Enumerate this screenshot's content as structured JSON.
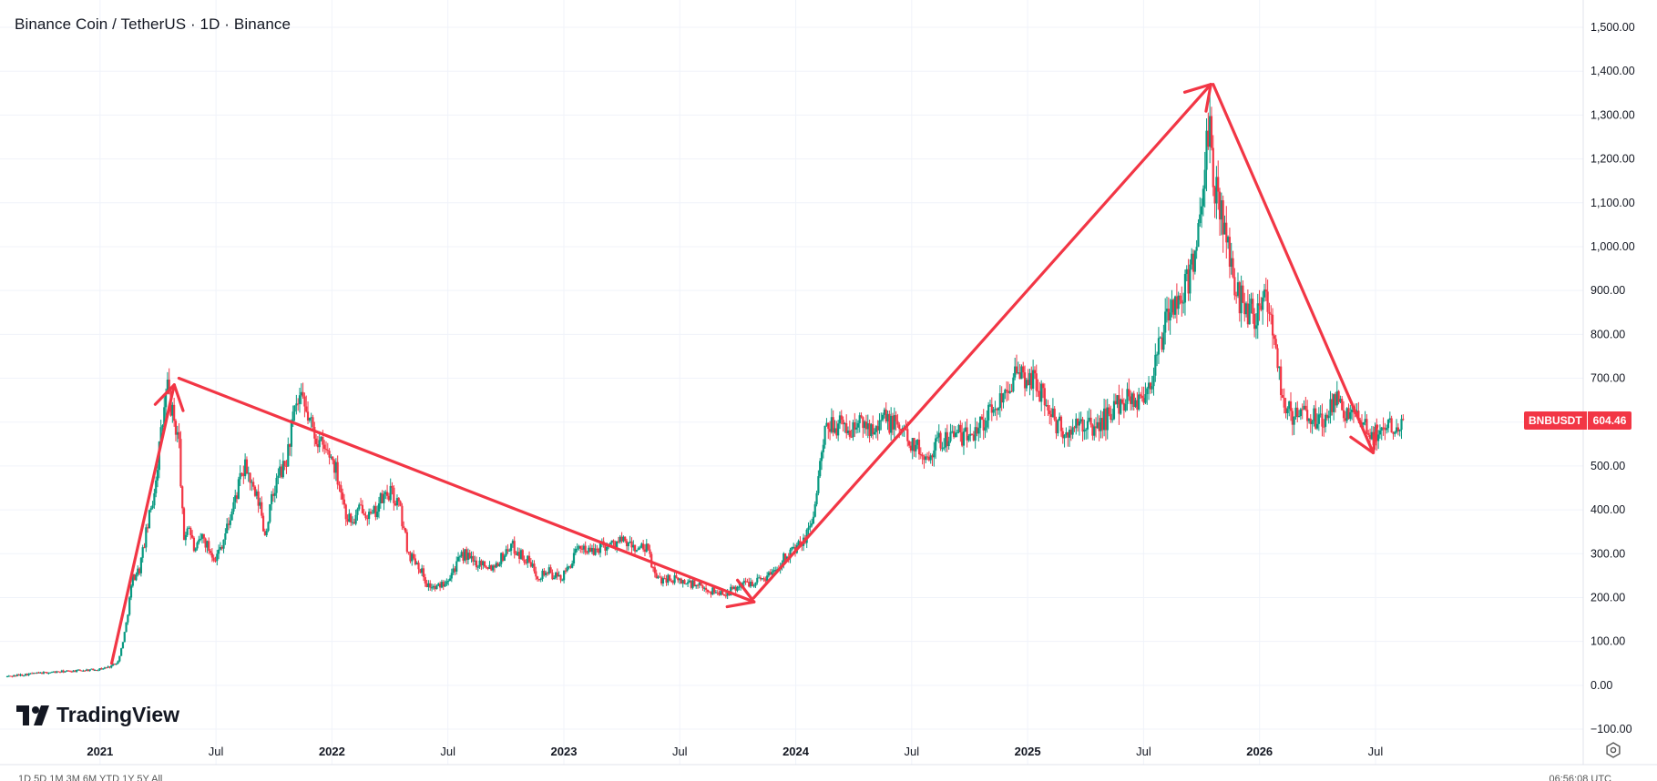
{
  "header": {
    "title": "Binance Coin / TetherUS · 1D · Binance"
  },
  "branding": {
    "logo_text": "TradingView",
    "logo_icon": "tradingview-logo-icon"
  },
  "price_badge": {
    "symbol": "BNBUSDT",
    "value": "604.46",
    "color": "#f23645"
  },
  "footer": {
    "ranges_text": "1D  5D  1M  3M  6M  YTD  1Y  5Y  All",
    "time_text": "06:56:08 UTC",
    "calendar_icon": "calendar-icon",
    "settings_icon": "gear-icon"
  },
  "colors": {
    "up": "#089981",
    "down": "#f23645",
    "arrow": "#f23645",
    "grid": "#f0f3fa",
    "wick": "#555555"
  },
  "chart_data": {
    "type": "line",
    "title": "Binance Coin / TetherUS · 1D · Binance",
    "xlabel": "",
    "ylabel": "",
    "ylim": [
      -100,
      1500
    ],
    "y_ticks": [
      "1,500.00",
      "1,400.00",
      "1,300.00",
      "1,200.00",
      "1,100.00",
      "1,000.00",
      "900.00",
      "800.00",
      "700.00",
      "600.00",
      "500.00",
      "400.00",
      "300.00",
      "200.00",
      "100.00",
      "0.00",
      "−100.00"
    ],
    "y_tick_values": [
      1500,
      1400,
      1300,
      1200,
      1100,
      1000,
      900,
      800,
      700,
      600,
      500,
      400,
      300,
      200,
      100,
      0,
      -100
    ],
    "x_ticks": [
      {
        "label": "2021",
        "year": 2021.0,
        "major": true
      },
      {
        "label": "Jul",
        "year": 2021.5,
        "major": false
      },
      {
        "label": "2022",
        "year": 2022.0,
        "major": true
      },
      {
        "label": "Jul",
        "year": 2022.5,
        "major": false
      },
      {
        "label": "2023",
        "year": 2023.0,
        "major": true
      },
      {
        "label": "Jul",
        "year": 2023.5,
        "major": false
      },
      {
        "label": "2024",
        "year": 2024.0,
        "major": true
      },
      {
        "label": "Jul",
        "year": 2024.5,
        "major": false
      },
      {
        "label": "2025",
        "year": 2025.0,
        "major": true
      },
      {
        "label": "Jul",
        "year": 2025.5,
        "major": false
      },
      {
        "label": "2026",
        "year": 2026.0,
        "major": true
      },
      {
        "label": "Jul",
        "year": 2026.5,
        "major": false
      }
    ],
    "xlim": [
      2020.6,
      2027.05
    ],
    "grid": true,
    "series": [
      {
        "points": [
          [
            2020.6,
            20
          ],
          [
            2020.7,
            26
          ],
          [
            2020.8,
            30
          ],
          [
            2020.9,
            33
          ],
          [
            2021.0,
            37
          ],
          [
            2021.04,
            42
          ],
          [
            2021.08,
            55
          ],
          [
            2021.11,
            130
          ],
          [
            2021.14,
            245
          ],
          [
            2021.17,
            265
          ],
          [
            2021.2,
            350
          ],
          [
            2021.23,
            430
          ],
          [
            2021.26,
            560
          ],
          [
            2021.29,
            680
          ],
          [
            2021.31,
            620
          ],
          [
            2021.34,
            560
          ],
          [
            2021.36,
            330
          ],
          [
            2021.38,
            370
          ],
          [
            2021.41,
            300
          ],
          [
            2021.44,
            340
          ],
          [
            2021.47,
            310
          ],
          [
            2021.5,
            290
          ],
          [
            2021.53,
            330
          ],
          [
            2021.56,
            380
          ],
          [
            2021.6,
            460
          ],
          [
            2021.63,
            500
          ],
          [
            2021.66,
            440
          ],
          [
            2021.69,
            410
          ],
          [
            2021.71,
            340
          ],
          [
            2021.74,
            420
          ],
          [
            2021.77,
            480
          ],
          [
            2021.8,
            500
          ],
          [
            2021.83,
            600
          ],
          [
            2021.86,
            650
          ],
          [
            2021.89,
            620
          ],
          [
            2021.92,
            580
          ],
          [
            2021.96,
            540
          ],
          [
            2022.0,
            520
          ],
          [
            2022.03,
            470
          ],
          [
            2022.06,
            390
          ],
          [
            2022.09,
            370
          ],
          [
            2022.13,
            410
          ],
          [
            2022.17,
            380
          ],
          [
            2022.21,
            420
          ],
          [
            2022.25,
            440
          ],
          [
            2022.29,
            410
          ],
          [
            2022.33,
            300
          ],
          [
            2022.37,
            280
          ],
          [
            2022.41,
            230
          ],
          [
            2022.45,
            220
          ],
          [
            2022.49,
            240
          ],
          [
            2022.53,
            270
          ],
          [
            2022.57,
            300
          ],
          [
            2022.61,
            280
          ],
          [
            2022.65,
            280
          ],
          [
            2022.69,
            270
          ],
          [
            2022.73,
            290
          ],
          [
            2022.77,
            320
          ],
          [
            2022.81,
            300
          ],
          [
            2022.85,
            280
          ],
          [
            2022.89,
            250
          ],
          [
            2022.93,
            260
          ],
          [
            2022.97,
            245
          ],
          [
            2023.0,
            250
          ],
          [
            2023.04,
            290
          ],
          [
            2023.08,
            320
          ],
          [
            2023.12,
            300
          ],
          [
            2023.16,
            320
          ],
          [
            2023.2,
            320
          ],
          [
            2023.24,
            330
          ],
          [
            2023.28,
            320
          ],
          [
            2023.32,
            310
          ],
          [
            2023.36,
            310
          ],
          [
            2023.4,
            240
          ],
          [
            2023.44,
            245
          ],
          [
            2023.48,
            240
          ],
          [
            2023.52,
            235
          ],
          [
            2023.56,
            230
          ],
          [
            2023.6,
            220
          ],
          [
            2023.64,
            215
          ],
          [
            2023.68,
            210
          ],
          [
            2023.72,
            215
          ],
          [
            2023.76,
            230
          ],
          [
            2023.8,
            235
          ],
          [
            2023.84,
            240
          ],
          [
            2023.88,
            250
          ],
          [
            2023.92,
            270
          ],
          [
            2023.96,
            300
          ],
          [
            2024.0,
            310
          ],
          [
            2024.04,
            330
          ],
          [
            2024.08,
            400
          ],
          [
            2024.12,
            560
          ],
          [
            2024.16,
            600
          ],
          [
            2024.2,
            590
          ],
          [
            2024.24,
            580
          ],
          [
            2024.28,
            600
          ],
          [
            2024.32,
            590
          ],
          [
            2024.36,
            610
          ],
          [
            2024.4,
            600
          ],
          [
            2024.44,
            590
          ],
          [
            2024.48,
            570
          ],
          [
            2024.52,
            540
          ],
          [
            2024.56,
            520
          ],
          [
            2024.6,
            550
          ],
          [
            2024.64,
            560
          ],
          [
            2024.68,
            580
          ],
          [
            2024.72,
            560
          ],
          [
            2024.76,
            580
          ],
          [
            2024.8,
            600
          ],
          [
            2024.84,
            620
          ],
          [
            2024.88,
            650
          ],
          [
            2024.92,
            700
          ],
          [
            2024.96,
            700
          ],
          [
            2025.0,
            700
          ],
          [
            2025.04,
            690
          ],
          [
            2025.08,
            640
          ],
          [
            2025.12,
            600
          ],
          [
            2025.16,
            570
          ],
          [
            2025.2,
            580
          ],
          [
            2025.24,
            600
          ],
          [
            2025.28,
            580
          ],
          [
            2025.32,
            600
          ],
          [
            2025.36,
            620
          ],
          [
            2025.4,
            650
          ],
          [
            2025.44,
            660
          ],
          [
            2025.48,
            650
          ],
          [
            2025.52,
            680
          ],
          [
            2025.56,
            750
          ],
          [
            2025.6,
            840
          ],
          [
            2025.64,
            870
          ],
          [
            2025.68,
            900
          ],
          [
            2025.72,
            1000
          ],
          [
            2025.75,
            1050
          ],
          [
            2025.78,
            1280
          ],
          [
            2025.8,
            1150
          ],
          [
            2025.83,
            1100
          ],
          [
            2025.86,
            1000
          ],
          [
            2025.89,
            920
          ],
          [
            2025.92,
            880
          ],
          [
            2025.95,
            860
          ],
          [
            2025.98,
            850
          ],
          [
            2026.01,
            900
          ],
          [
            2026.04,
            870
          ],
          [
            2026.07,
            780
          ],
          [
            2026.1,
            650
          ],
          [
            2026.14,
            610
          ],
          [
            2026.18,
            620
          ],
          [
            2026.22,
            610
          ],
          [
            2026.26,
            600
          ],
          [
            2026.3,
            620
          ],
          [
            2026.34,
            650
          ],
          [
            2026.38,
            620
          ],
          [
            2026.42,
            600
          ],
          [
            2026.46,
            580
          ],
          [
            2026.5,
            570
          ],
          [
            2026.54,
            590
          ],
          [
            2026.58,
            600
          ],
          [
            2026.62,
            604.46
          ]
        ]
      }
    ],
    "annotations": [
      {
        "type": "arrow",
        "from": [
          2021.05,
          50
        ],
        "to": [
          2021.32,
          685
        ]
      },
      {
        "type": "arrow",
        "from": [
          2021.34,
          700
        ],
        "to": [
          2023.82,
          190
        ]
      },
      {
        "type": "arrow",
        "from": [
          2023.82,
          200
        ],
        "to": [
          2025.79,
          1370
        ]
      },
      {
        "type": "arrow",
        "from": [
          2025.8,
          1370
        ],
        "to": [
          2026.49,
          530
        ]
      }
    ]
  }
}
